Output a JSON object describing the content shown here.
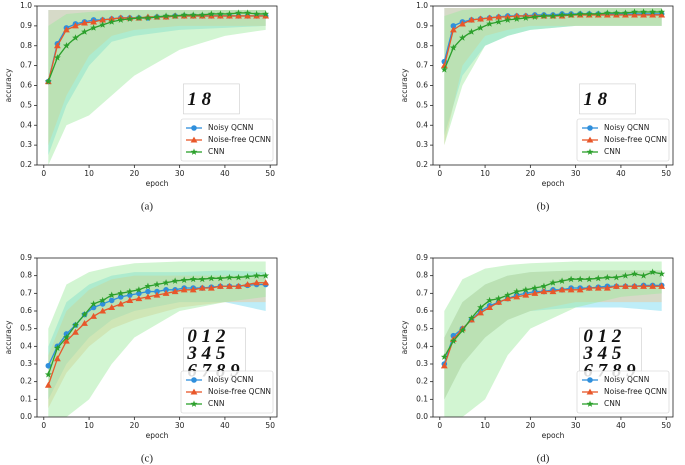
{
  "chart_data": [
    {
      "type": "line",
      "caption": "(a)",
      "xlabel": "epoch",
      "ylabel": "accuracy",
      "inset": [
        "1 8"
      ],
      "xlim": [
        -1.5,
        51.5
      ],
      "xticks": [
        0,
        10,
        20,
        30,
        40,
        50
      ],
      "ylim": [
        0.2,
        1.0
      ],
      "yticks": [
        0.2,
        0.3,
        0.4,
        0.5,
        0.6,
        0.7,
        0.8,
        0.9,
        {
          "value": 1,
          "label": "1.0"
        }
      ],
      "legend": "lower right",
      "grid": false,
      "x": [
        1,
        3,
        5,
        7,
        9,
        11,
        13,
        15,
        17,
        19,
        21,
        23,
        25,
        27,
        29,
        31,
        33,
        35,
        37,
        39,
        41,
        43,
        45,
        47,
        49
      ],
      "series": [
        {
          "name": "Noisy QCNN",
          "color": "#2f8fdc",
          "marker": "o",
          "band_color": "#6fd6f0",
          "values": [
            0.62,
            0.81,
            0.89,
            0.91,
            0.92,
            0.93,
            0.93,
            0.935,
            0.94,
            0.94,
            0.94,
            0.94,
            0.945,
            0.945,
            0.95,
            0.95,
            0.95,
            0.95,
            0.95,
            0.95,
            0.95,
            0.95,
            0.95,
            0.95,
            0.95
          ],
          "band": {
            "x": [
              1,
              5,
              10,
              15,
              20,
              30,
              40,
              49
            ],
            "lower": [
              0.25,
              0.5,
              0.7,
              0.82,
              0.85,
              0.88,
              0.89,
              0.9
            ],
            "upper": [
              0.98,
              0.98,
              0.98,
              0.98,
              0.98,
              0.98,
              0.98,
              0.98
            ]
          }
        },
        {
          "name": "Noise-free QCNN",
          "color": "#e8572a",
          "marker": "^",
          "band_color": "#f3c48e",
          "values": [
            0.62,
            0.8,
            0.88,
            0.9,
            0.915,
            0.92,
            0.93,
            0.935,
            0.94,
            0.94,
            0.94,
            0.945,
            0.945,
            0.945,
            0.95,
            0.95,
            0.95,
            0.95,
            0.95,
            0.95,
            0.95,
            0.95,
            0.95,
            0.95,
            0.95
          ],
          "band": {
            "x": [
              1,
              5,
              10,
              15,
              20,
              30,
              40,
              49
            ],
            "lower": [
              0.3,
              0.55,
              0.75,
              0.85,
              0.88,
              0.9,
              0.9,
              0.9
            ],
            "upper": [
              0.98,
              0.98,
              0.98,
              0.98,
              0.98,
              0.98,
              0.98,
              0.98
            ]
          }
        },
        {
          "name": "CNN",
          "color": "#2ca02c",
          "marker": "*",
          "band_color": "#9be89b",
          "values": [
            0.62,
            0.74,
            0.8,
            0.84,
            0.87,
            0.89,
            0.905,
            0.92,
            0.93,
            0.935,
            0.94,
            0.94,
            0.945,
            0.95,
            0.95,
            0.955,
            0.955,
            0.955,
            0.96,
            0.96,
            0.96,
            0.965,
            0.965,
            0.96,
            0.96
          ],
          "band": {
            "x": [
              1,
              5,
              10,
              15,
              20,
              30,
              40,
              49
            ],
            "lower": [
              0.2,
              0.4,
              0.45,
              0.55,
              0.65,
              0.78,
              0.85,
              0.88
            ],
            "upper": [
              0.9,
              0.96,
              0.97,
              0.98,
              0.98,
              0.98,
              0.98,
              0.98
            ]
          }
        }
      ]
    },
    {
      "type": "line",
      "caption": "(b)",
      "xlabel": "epoch",
      "ylabel": "accuracy",
      "inset": [
        "1 8"
      ],
      "xlim": [
        -1.5,
        51.5
      ],
      "xticks": [
        0,
        10,
        20,
        30,
        40,
        50
      ],
      "ylim": [
        0.2,
        1.0
      ],
      "yticks": [
        0.2,
        0.3,
        0.4,
        0.5,
        0.6,
        0.7,
        0.8,
        0.9,
        {
          "value": 1,
          "label": "1.0"
        }
      ],
      "legend": "lower right",
      "grid": false,
      "x": [
        1,
        3,
        5,
        7,
        9,
        11,
        13,
        15,
        17,
        19,
        21,
        23,
        25,
        27,
        29,
        31,
        33,
        35,
        37,
        39,
        41,
        43,
        45,
        47,
        49
      ],
      "series": [
        {
          "name": "Noisy QCNN",
          "color": "#2f8fdc",
          "marker": "o",
          "band_color": "#6fd6f0",
          "values": [
            0.72,
            0.9,
            0.92,
            0.93,
            0.935,
            0.94,
            0.945,
            0.95,
            0.95,
            0.95,
            0.955,
            0.955,
            0.955,
            0.96,
            0.96,
            0.96,
            0.96,
            0.96,
            0.96,
            0.96,
            0.96,
            0.96,
            0.96,
            0.96,
            0.96
          ],
          "band": {
            "x": [
              1,
              5,
              10,
              15,
              20,
              30,
              40,
              49
            ],
            "lower": [
              0.35,
              0.65,
              0.8,
              0.85,
              0.88,
              0.9,
              0.9,
              0.9
            ],
            "upper": [
              0.99,
              0.99,
              0.99,
              0.99,
              0.99,
              0.99,
              0.99,
              0.99
            ]
          }
        },
        {
          "name": "Noise-free QCNN",
          "color": "#e8572a",
          "marker": "^",
          "band_color": "#f3c48e",
          "values": [
            0.7,
            0.88,
            0.91,
            0.93,
            0.935,
            0.94,
            0.945,
            0.945,
            0.95,
            0.95,
            0.95,
            0.95,
            0.95,
            0.95,
            0.955,
            0.955,
            0.955,
            0.955,
            0.955,
            0.955,
            0.955,
            0.955,
            0.955,
            0.955,
            0.955
          ],
          "band": {
            "x": [
              1,
              5,
              10,
              15,
              20,
              30,
              40,
              49
            ],
            "lower": [
              0.3,
              0.7,
              0.85,
              0.88,
              0.9,
              0.9,
              0.9,
              0.9
            ],
            "upper": [
              0.99,
              0.99,
              0.99,
              0.99,
              0.99,
              0.99,
              0.99,
              0.99
            ]
          }
        },
        {
          "name": "CNN",
          "color": "#2ca02c",
          "marker": "*",
          "band_color": "#9be89b",
          "values": [
            0.68,
            0.79,
            0.84,
            0.87,
            0.89,
            0.91,
            0.92,
            0.93,
            0.935,
            0.94,
            0.945,
            0.95,
            0.95,
            0.955,
            0.955,
            0.96,
            0.96,
            0.96,
            0.965,
            0.965,
            0.965,
            0.97,
            0.97,
            0.97,
            0.97
          ],
          "band": {
            "x": [
              1,
              5,
              10,
              15,
              20,
              30,
              40,
              49
            ],
            "lower": [
              0.3,
              0.6,
              0.8,
              0.85,
              0.88,
              0.9,
              0.9,
              0.9
            ],
            "upper": [
              0.95,
              0.98,
              0.99,
              0.99,
              0.99,
              0.99,
              0.99,
              0.99
            ]
          }
        }
      ]
    },
    {
      "type": "line",
      "caption": "(c)",
      "xlabel": "epoch",
      "ylabel": "accuracy",
      "inset": [
        "0 1 2",
        "3 4 5",
        "6 7 8 9"
      ],
      "xlim": [
        -1.5,
        51.5
      ],
      "xticks": [
        0,
        10,
        20,
        30,
        40,
        50
      ],
      "ylim": [
        0,
        0.9
      ],
      "yticks": [
        {
          "value": 0,
          "label": "0.0"
        },
        0.1,
        0.2,
        0.3,
        0.4,
        0.5,
        0.6,
        0.7,
        0.8,
        0.9
      ],
      "legend": "lower right",
      "grid": false,
      "x": [
        1,
        3,
        5,
        7,
        9,
        11,
        13,
        15,
        17,
        19,
        21,
        23,
        25,
        27,
        29,
        31,
        33,
        35,
        37,
        39,
        41,
        43,
        45,
        47,
        49
      ],
      "series": [
        {
          "name": "Noisy QCNN",
          "color": "#2f8fdc",
          "marker": "o",
          "band_color": "#6fd6f0",
          "values": [
            0.29,
            0.4,
            0.47,
            0.52,
            0.58,
            0.62,
            0.64,
            0.66,
            0.68,
            0.69,
            0.7,
            0.71,
            0.71,
            0.72,
            0.72,
            0.73,
            0.73,
            0.73,
            0.735,
            0.74,
            0.74,
            0.74,
            0.745,
            0.75,
            0.75
          ],
          "band": {
            "x": [
              1,
              5,
              10,
              15,
              20,
              30,
              40,
              49
            ],
            "lower": [
              0.1,
              0.3,
              0.45,
              0.55,
              0.6,
              0.65,
              0.65,
              0.6
            ],
            "upper": [
              0.4,
              0.65,
              0.75,
              0.8,
              0.82,
              0.82,
              0.83,
              0.82
            ]
          }
        },
        {
          "name": "Noise-free QCNN",
          "color": "#e8572a",
          "marker": "^",
          "band_color": "#f3c48e",
          "values": [
            0.18,
            0.33,
            0.43,
            0.48,
            0.53,
            0.57,
            0.6,
            0.62,
            0.64,
            0.66,
            0.67,
            0.68,
            0.69,
            0.7,
            0.71,
            0.72,
            0.72,
            0.73,
            0.73,
            0.74,
            0.74,
            0.74,
            0.75,
            0.76,
            0.76
          ],
          "band": {
            "x": [
              1,
              5,
              10,
              15,
              20,
              30,
              40,
              49
            ],
            "lower": [
              0.05,
              0.25,
              0.4,
              0.5,
              0.55,
              0.62,
              0.65,
              0.65
            ],
            "upper": [
              0.35,
              0.6,
              0.72,
              0.78,
              0.8,
              0.8,
              0.8,
              0.8
            ]
          }
        },
        {
          "name": "CNN",
          "color": "#2ca02c",
          "marker": "*",
          "band_color": "#9be89b",
          "values": [
            0.24,
            0.39,
            0.45,
            0.52,
            0.58,
            0.64,
            0.66,
            0.69,
            0.7,
            0.71,
            0.72,
            0.74,
            0.75,
            0.76,
            0.77,
            0.775,
            0.78,
            0.78,
            0.785,
            0.785,
            0.79,
            0.79,
            0.795,
            0.8,
            0.8
          ],
          "band": {
            "x": [
              1,
              5,
              10,
              15,
              20,
              30,
              40,
              49
            ],
            "lower": [
              0,
              0,
              0.1,
              0.3,
              0.45,
              0.6,
              0.65,
              0.68
            ],
            "upper": [
              0.5,
              0.75,
              0.82,
              0.85,
              0.87,
              0.88,
              0.88,
              0.88
            ]
          }
        }
      ]
    },
    {
      "type": "line",
      "caption": "(d)",
      "xlabel": "epoch",
      "ylabel": "accuracy",
      "inset": [
        "0 1 2",
        "3 4 5",
        "6 7 8 9"
      ],
      "xlim": [
        -1.5,
        51.5
      ],
      "xticks": [
        0,
        10,
        20,
        30,
        40,
        50
      ],
      "ylim": [
        0,
        0.9
      ],
      "yticks": [
        {
          "value": 0,
          "label": "0.0"
        },
        0.1,
        0.2,
        0.3,
        0.4,
        0.5,
        0.6,
        0.7,
        0.8,
        0.9
      ],
      "legend": "lower right",
      "grid": false,
      "x": [
        1,
        3,
        5,
        7,
        9,
        11,
        13,
        15,
        17,
        19,
        21,
        23,
        25,
        27,
        29,
        31,
        33,
        35,
        37,
        39,
        41,
        43,
        45,
        47,
        49
      ],
      "series": [
        {
          "name": "Noisy QCNN",
          "color": "#2f8fdc",
          "marker": "o",
          "band_color": "#6fd6f0",
          "values": [
            0.3,
            0.46,
            0.5,
            0.55,
            0.6,
            0.63,
            0.65,
            0.67,
            0.69,
            0.7,
            0.71,
            0.71,
            0.72,
            0.72,
            0.73,
            0.73,
            0.73,
            0.735,
            0.74,
            0.74,
            0.74,
            0.74,
            0.745,
            0.745,
            0.745
          ],
          "band": {
            "x": [
              1,
              5,
              10,
              15,
              20,
              30,
              40,
              49
            ],
            "lower": [
              0.1,
              0.3,
              0.45,
              0.55,
              0.6,
              0.62,
              0.62,
              0.6
            ],
            "upper": [
              0.45,
              0.65,
              0.75,
              0.8,
              0.82,
              0.83,
              0.83,
              0.83
            ]
          }
        },
        {
          "name": "Noise-free QCNN",
          "color": "#e8572a",
          "marker": "^",
          "band_color": "#f3c48e",
          "values": [
            0.29,
            0.44,
            0.5,
            0.55,
            0.59,
            0.62,
            0.65,
            0.67,
            0.68,
            0.69,
            0.7,
            0.71,
            0.71,
            0.72,
            0.72,
            0.72,
            0.73,
            0.73,
            0.73,
            0.74,
            0.74,
            0.74,
            0.74,
            0.74,
            0.74
          ],
          "band": {
            "x": [
              1,
              5,
              10,
              15,
              20,
              30,
              40,
              49
            ],
            "lower": [
              0.1,
              0.3,
              0.45,
              0.55,
              0.6,
              0.65,
              0.65,
              0.65
            ],
            "upper": [
              0.45,
              0.65,
              0.75,
              0.8,
              0.82,
              0.83,
              0.83,
              0.83
            ]
          }
        },
        {
          "name": "CNN",
          "color": "#2ca02c",
          "marker": "*",
          "band_color": "#9be89b",
          "values": [
            0.34,
            0.43,
            0.49,
            0.56,
            0.62,
            0.66,
            0.67,
            0.69,
            0.71,
            0.72,
            0.73,
            0.74,
            0.76,
            0.77,
            0.78,
            0.78,
            0.78,
            0.785,
            0.79,
            0.79,
            0.8,
            0.81,
            0.8,
            0.82,
            0.81
          ],
          "band": {
            "x": [
              1,
              5,
              10,
              15,
              20,
              30,
              40,
              49
            ],
            "lower": [
              0,
              0,
              0.1,
              0.35,
              0.5,
              0.62,
              0.68,
              0.7
            ],
            "upper": [
              0.6,
              0.78,
              0.84,
              0.86,
              0.87,
              0.88,
              0.88,
              0.88
            ]
          }
        }
      ]
    }
  ]
}
